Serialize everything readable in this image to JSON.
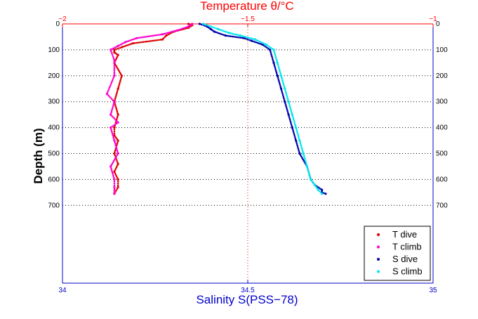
{
  "colors": {
    "temperature_axis": "#ff0000",
    "salinity_axis": "#0000cc",
    "t_dive": "#dd0000",
    "t_climb": "#ff00cc",
    "s_dive": "#0000aa",
    "s_climb": "#00e5ee",
    "grid": "#000000"
  },
  "chart_data": {
    "type": "scatter",
    "title": "Temperature θ/°C",
    "xlabel": "Salinity S(PSS−78)",
    "ylabel": "Depth (m)",
    "ylim": [
      0,
      1000
    ],
    "y_reversed": true,
    "y_ticks": [
      "0",
      "100",
      "200",
      "300",
      "400",
      "500",
      "600",
      "700"
    ],
    "y_tick_values": [
      0,
      100,
      200,
      300,
      400,
      500,
      600,
      700
    ],
    "x_bottom": {
      "label": "Salinity S(PSS−78)",
      "lim": [
        34,
        35
      ],
      "ticks": [
        "34",
        "34.5",
        "35"
      ],
      "tick_values": [
        34,
        34.5,
        35
      ]
    },
    "x_top": {
      "label": "Temperature θ/°C",
      "lim": [
        -2,
        -1
      ],
      "ticks": [
        "−2",
        "−1.5",
        "−1"
      ],
      "tick_values": [
        -2,
        -1.5,
        -1
      ]
    },
    "grid": true,
    "legend_position": "bottom-right",
    "series": [
      {
        "name": "T dive",
        "axis": "temperature",
        "marker": ".",
        "x": [
          -1.66,
          -1.65,
          -1.66,
          -1.7,
          -1.72,
          -1.73,
          -1.81,
          -1.84,
          -1.86,
          -1.86,
          -1.85,
          -1.86,
          -1.84,
          -1.85,
          -1.86,
          -1.85,
          -1.86,
          -1.86,
          -1.85,
          -1.86,
          -1.85,
          -1.86,
          -1.85,
          -1.85,
          -1.86
        ],
        "y": [
          0,
          5,
          15,
          30,
          45,
          60,
          75,
          90,
          100,
          110,
          120,
          150,
          200,
          250,
          300,
          350,
          400,
          430,
          450,
          500,
          540,
          570,
          600,
          630,
          655
        ]
      },
      {
        "name": "T climb",
        "axis": "temperature",
        "marker": ".",
        "x": [
          -1.65,
          -1.66,
          -1.69,
          -1.73,
          -1.8,
          -1.83,
          -1.85,
          -1.87,
          -1.86,
          -1.86,
          -1.88,
          -1.86,
          -1.87,
          -1.85,
          -1.87,
          -1.86,
          -1.85,
          -1.87,
          -1.86,
          -1.86,
          -1.86
        ],
        "y": [
          0,
          10,
          25,
          40,
          55,
          70,
          85,
          100,
          140,
          200,
          270,
          300,
          350,
          380,
          400,
          450,
          500,
          550,
          600,
          630,
          655
        ]
      },
      {
        "name": "S dive",
        "axis": "salinity",
        "marker": ".",
        "x": [
          34.37,
          34.39,
          34.4,
          34.41,
          34.44,
          34.49,
          34.51,
          34.54,
          34.56,
          34.57,
          34.58,
          34.59,
          34.6,
          34.61,
          34.62,
          34.63,
          34.64,
          34.66,
          34.67,
          34.68,
          34.7,
          34.7,
          34.71
        ],
        "y": [
          0,
          10,
          20,
          30,
          45,
          55,
          65,
          80,
          100,
          150,
          200,
          250,
          300,
          350,
          400,
          450,
          500,
          550,
          600,
          620,
          640,
          650,
          655
        ]
      },
      {
        "name": "S climb",
        "axis": "salinity",
        "marker": ".",
        "x": [
          34.38,
          34.4,
          34.42,
          34.45,
          34.48,
          34.52,
          34.55,
          34.57,
          34.58,
          34.59,
          34.6,
          34.61,
          34.62,
          34.63,
          34.64,
          34.65,
          34.66,
          34.67,
          34.68,
          34.69,
          34.7
        ],
        "y": [
          0,
          10,
          20,
          35,
          45,
          60,
          80,
          100,
          150,
          200,
          250,
          300,
          350,
          400,
          450,
          500,
          550,
          600,
          620,
          640,
          655
        ]
      }
    ]
  }
}
